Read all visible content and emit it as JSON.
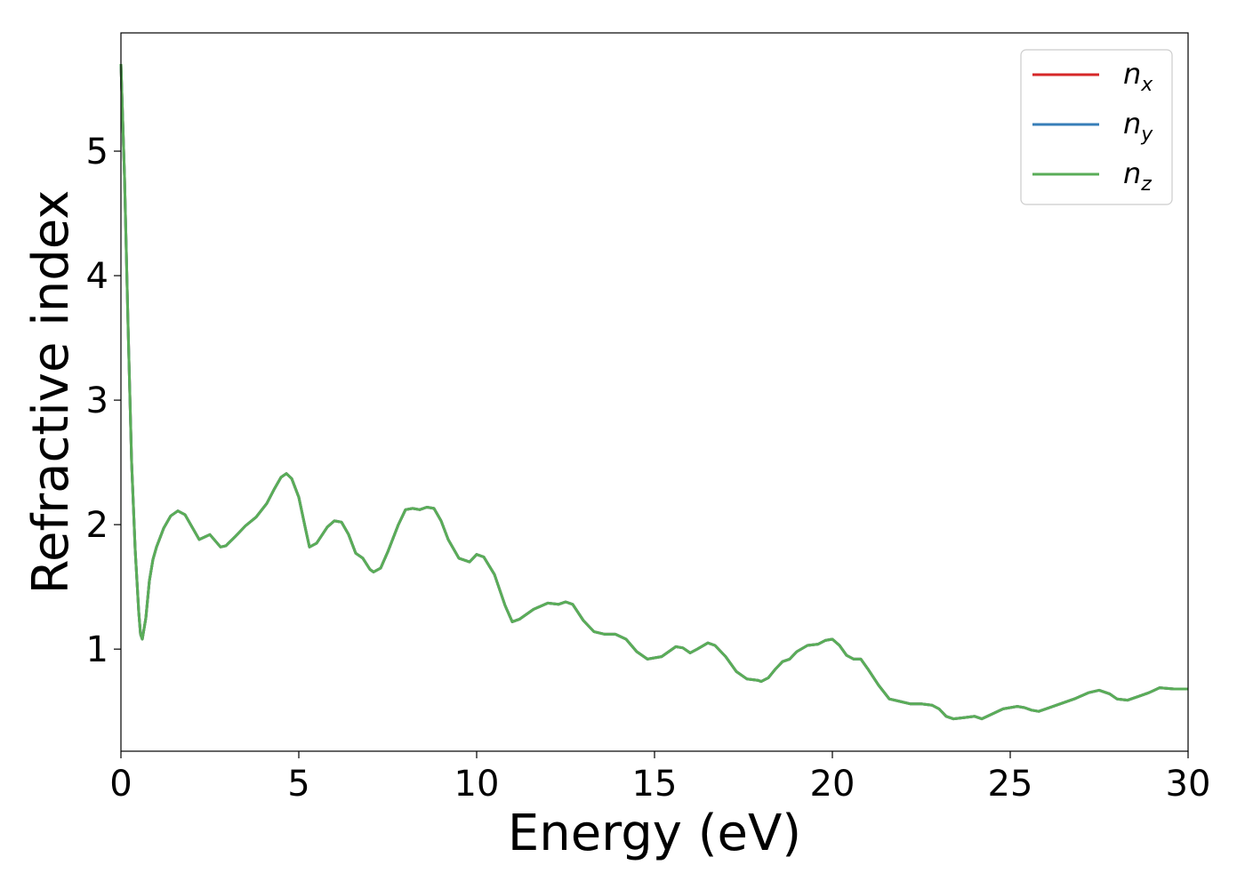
{
  "chart_data": {
    "type": "line",
    "xlabel": "Energy (eV)",
    "ylabel": "Refractive index",
    "xlim": [
      0,
      30
    ],
    "ylim": [
      0.18,
      5.95
    ],
    "grid": false,
    "legend_position": "top-right",
    "xticks": [
      0,
      5,
      10,
      15,
      20,
      25,
      30
    ],
    "xtick_labels": [
      "0",
      "5",
      "10",
      "15",
      "20",
      "25",
      "30"
    ],
    "yticks": [
      1,
      2,
      3,
      4,
      5
    ],
    "ytick_labels": [
      "1",
      "2",
      "3",
      "4",
      "5"
    ],
    "series": [
      {
        "name": "n_x",
        "legend_base": "n",
        "legend_sub": "x",
        "color": "#d62728",
        "x": [
          0,
          0.1,
          0.2,
          0.3,
          0.4,
          0.5,
          0.55,
          0.6,
          0.7,
          0.8,
          0.9,
          1.0,
          1.2,
          1.4,
          1.6,
          1.8,
          2.0,
          2.2,
          2.35,
          2.5,
          2.65,
          2.8,
          2.95,
          3.2,
          3.5,
          3.8,
          4.1,
          4.3,
          4.5,
          4.65,
          4.8,
          5.0,
          5.2,
          5.3,
          5.5,
          5.8,
          6.0,
          6.2,
          6.4,
          6.6,
          6.8,
          7.0,
          7.1,
          7.3,
          7.5,
          7.8,
          8.0,
          8.2,
          8.4,
          8.6,
          8.8,
          9.0,
          9.2,
          9.5,
          9.8,
          10.0,
          10.2,
          10.5,
          10.8,
          11.0,
          11.2,
          11.6,
          12.0,
          12.3,
          12.5,
          12.7,
          13.0,
          13.3,
          13.6,
          13.9,
          14.2,
          14.5,
          14.8,
          15.2,
          15.6,
          15.8,
          16.0,
          16.2,
          16.5,
          16.7,
          17.0,
          17.3,
          17.6,
          17.9,
          18.0,
          18.2,
          18.4,
          18.6,
          18.8,
          19.0,
          19.3,
          19.6,
          19.8,
          20.0,
          20.2,
          20.4,
          20.6,
          20.8,
          21.0,
          21.3,
          21.6,
          21.9,
          22.2,
          22.5,
          22.8,
          23.0,
          23.2,
          23.4,
          23.7,
          24.0,
          24.2,
          24.5,
          24.8,
          25.2,
          25.4,
          25.6,
          25.8,
          26.0,
          26.4,
          26.8,
          27.2,
          27.5,
          27.8,
          28.0,
          28.3,
          28.6,
          28.9,
          29.2,
          29.6,
          30.0
        ],
        "y": [
          5.7,
          4.8,
          3.6,
          2.5,
          1.8,
          1.3,
          1.12,
          1.08,
          1.25,
          1.55,
          1.72,
          1.82,
          1.97,
          2.07,
          2.11,
          2.08,
          1.98,
          1.88,
          1.9,
          1.92,
          1.87,
          1.82,
          1.83,
          1.9,
          1.99,
          2.06,
          2.17,
          2.28,
          2.38,
          2.41,
          2.37,
          2.22,
          1.95,
          1.82,
          1.85,
          1.98,
          2.03,
          2.02,
          1.92,
          1.77,
          1.73,
          1.64,
          1.62,
          1.65,
          1.78,
          2.0,
          2.12,
          2.13,
          2.12,
          2.14,
          2.13,
          2.03,
          1.88,
          1.73,
          1.7,
          1.76,
          1.74,
          1.6,
          1.35,
          1.22,
          1.24,
          1.32,
          1.37,
          1.36,
          1.38,
          1.36,
          1.23,
          1.14,
          1.12,
          1.12,
          1.08,
          0.98,
          0.92,
          0.94,
          1.02,
          1.01,
          0.97,
          1.0,
          1.05,
          1.03,
          0.94,
          0.82,
          0.76,
          0.75,
          0.74,
          0.77,
          0.84,
          0.9,
          0.92,
          0.98,
          1.03,
          1.04,
          1.07,
          1.08,
          1.03,
          0.95,
          0.92,
          0.92,
          0.84,
          0.71,
          0.6,
          0.58,
          0.56,
          0.56,
          0.55,
          0.52,
          0.46,
          0.44,
          0.45,
          0.46,
          0.44,
          0.48,
          0.52,
          0.54,
          0.53,
          0.51,
          0.5,
          0.52,
          0.56,
          0.6,
          0.65,
          0.67,
          0.64,
          0.6,
          0.59,
          0.62,
          0.65,
          0.69,
          0.68,
          0.68
        ]
      },
      {
        "name": "n_y",
        "legend_base": "n",
        "legend_sub": "y",
        "color": "#377eb8",
        "x": [
          0,
          0.1,
          0.2,
          0.3,
          0.4,
          0.5,
          0.55,
          0.6,
          0.7,
          0.8,
          0.9,
          1.0,
          1.2,
          1.4,
          1.6,
          1.8,
          2.0,
          2.2,
          2.35,
          2.5,
          2.65,
          2.8,
          2.95,
          3.2,
          3.5,
          3.8,
          4.1,
          4.3,
          4.5,
          4.65,
          4.8,
          5.0,
          5.2,
          5.3,
          5.5,
          5.8,
          6.0,
          6.2,
          6.4,
          6.6,
          6.8,
          7.0,
          7.1,
          7.3,
          7.5,
          7.8,
          8.0,
          8.2,
          8.4,
          8.6,
          8.8,
          9.0,
          9.2,
          9.5,
          9.8,
          10.0,
          10.2,
          10.5,
          10.8,
          11.0,
          11.2,
          11.6,
          12.0,
          12.3,
          12.5,
          12.7,
          13.0,
          13.3,
          13.6,
          13.9,
          14.2,
          14.5,
          14.8,
          15.2,
          15.6,
          15.8,
          16.0,
          16.2,
          16.5,
          16.7,
          17.0,
          17.3,
          17.6,
          17.9,
          18.0,
          18.2,
          18.4,
          18.6,
          18.8,
          19.0,
          19.3,
          19.6,
          19.8,
          20.0,
          20.2,
          20.4,
          20.6,
          20.8,
          21.0,
          21.3,
          21.6,
          21.9,
          22.2,
          22.5,
          22.8,
          23.0,
          23.2,
          23.4,
          23.7,
          24.0,
          24.2,
          24.5,
          24.8,
          25.2,
          25.4,
          25.6,
          25.8,
          26.0,
          26.4,
          26.8,
          27.2,
          27.5,
          27.8,
          28.0,
          28.3,
          28.6,
          28.9,
          29.2,
          29.6,
          30.0
        ],
        "y": [
          5.7,
          4.8,
          3.6,
          2.5,
          1.8,
          1.3,
          1.12,
          1.08,
          1.25,
          1.55,
          1.72,
          1.82,
          1.97,
          2.07,
          2.11,
          2.08,
          1.98,
          1.88,
          1.9,
          1.92,
          1.87,
          1.82,
          1.83,
          1.9,
          1.99,
          2.06,
          2.17,
          2.28,
          2.38,
          2.41,
          2.37,
          2.22,
          1.95,
          1.82,
          1.85,
          1.98,
          2.03,
          2.02,
          1.92,
          1.77,
          1.73,
          1.64,
          1.62,
          1.65,
          1.78,
          2.0,
          2.12,
          2.13,
          2.12,
          2.14,
          2.13,
          2.03,
          1.88,
          1.73,
          1.7,
          1.76,
          1.74,
          1.6,
          1.35,
          1.22,
          1.24,
          1.32,
          1.37,
          1.36,
          1.38,
          1.36,
          1.23,
          1.14,
          1.12,
          1.12,
          1.08,
          0.98,
          0.92,
          0.94,
          1.02,
          1.01,
          0.97,
          1.0,
          1.05,
          1.03,
          0.94,
          0.82,
          0.76,
          0.75,
          0.74,
          0.77,
          0.84,
          0.9,
          0.92,
          0.98,
          1.03,
          1.04,
          1.07,
          1.08,
          1.03,
          0.95,
          0.92,
          0.92,
          0.84,
          0.71,
          0.6,
          0.58,
          0.56,
          0.56,
          0.55,
          0.52,
          0.46,
          0.44,
          0.45,
          0.46,
          0.44,
          0.48,
          0.52,
          0.54,
          0.53,
          0.51,
          0.5,
          0.52,
          0.56,
          0.6,
          0.65,
          0.67,
          0.64,
          0.6,
          0.59,
          0.62,
          0.65,
          0.69,
          0.68,
          0.68
        ]
      },
      {
        "name": "n_z",
        "legend_base": "n",
        "legend_sub": "z",
        "color": "#5aad58",
        "x": [
          0,
          0.1,
          0.2,
          0.3,
          0.4,
          0.5,
          0.55,
          0.6,
          0.7,
          0.8,
          0.9,
          1.0,
          1.2,
          1.4,
          1.6,
          1.8,
          2.0,
          2.2,
          2.35,
          2.5,
          2.65,
          2.8,
          2.95,
          3.2,
          3.5,
          3.8,
          4.1,
          4.3,
          4.5,
          4.65,
          4.8,
          5.0,
          5.2,
          5.3,
          5.5,
          5.8,
          6.0,
          6.2,
          6.4,
          6.6,
          6.8,
          7.0,
          7.1,
          7.3,
          7.5,
          7.8,
          8.0,
          8.2,
          8.4,
          8.6,
          8.8,
          9.0,
          9.2,
          9.5,
          9.8,
          10.0,
          10.2,
          10.5,
          10.8,
          11.0,
          11.2,
          11.6,
          12.0,
          12.3,
          12.5,
          12.7,
          13.0,
          13.3,
          13.6,
          13.9,
          14.2,
          14.5,
          14.8,
          15.2,
          15.6,
          15.8,
          16.0,
          16.2,
          16.5,
          16.7,
          17.0,
          17.3,
          17.6,
          17.9,
          18.0,
          18.2,
          18.4,
          18.6,
          18.8,
          19.0,
          19.3,
          19.6,
          19.8,
          20.0,
          20.2,
          20.4,
          20.6,
          20.8,
          21.0,
          21.3,
          21.6,
          21.9,
          22.2,
          22.5,
          22.8,
          23.0,
          23.2,
          23.4,
          23.7,
          24.0,
          24.2,
          24.5,
          24.8,
          25.2,
          25.4,
          25.6,
          25.8,
          26.0,
          26.4,
          26.8,
          27.2,
          27.5,
          27.8,
          28.0,
          28.3,
          28.6,
          28.9,
          29.2,
          29.6,
          30.0
        ],
        "y": [
          5.7,
          4.8,
          3.6,
          2.5,
          1.8,
          1.3,
          1.12,
          1.08,
          1.25,
          1.55,
          1.72,
          1.82,
          1.97,
          2.07,
          2.11,
          2.08,
          1.98,
          1.88,
          1.9,
          1.92,
          1.87,
          1.82,
          1.83,
          1.9,
          1.99,
          2.06,
          2.17,
          2.28,
          2.38,
          2.41,
          2.37,
          2.22,
          1.95,
          1.82,
          1.85,
          1.98,
          2.03,
          2.02,
          1.92,
          1.77,
          1.73,
          1.64,
          1.62,
          1.65,
          1.78,
          2.0,
          2.12,
          2.13,
          2.12,
          2.14,
          2.13,
          2.03,
          1.88,
          1.73,
          1.7,
          1.76,
          1.74,
          1.6,
          1.35,
          1.22,
          1.24,
          1.32,
          1.37,
          1.36,
          1.38,
          1.36,
          1.23,
          1.14,
          1.12,
          1.12,
          1.08,
          0.98,
          0.92,
          0.94,
          1.02,
          1.01,
          0.97,
          1.0,
          1.05,
          1.03,
          0.94,
          0.82,
          0.76,
          0.75,
          0.74,
          0.77,
          0.84,
          0.9,
          0.92,
          0.98,
          1.03,
          1.04,
          1.07,
          1.08,
          1.03,
          0.95,
          0.92,
          0.92,
          0.84,
          0.71,
          0.6,
          0.58,
          0.56,
          0.56,
          0.55,
          0.52,
          0.46,
          0.44,
          0.45,
          0.46,
          0.44,
          0.48,
          0.52,
          0.54,
          0.53,
          0.51,
          0.5,
          0.52,
          0.56,
          0.6,
          0.65,
          0.67,
          0.64,
          0.6,
          0.59,
          0.62,
          0.65,
          0.69,
          0.68,
          0.68
        ]
      }
    ]
  }
}
